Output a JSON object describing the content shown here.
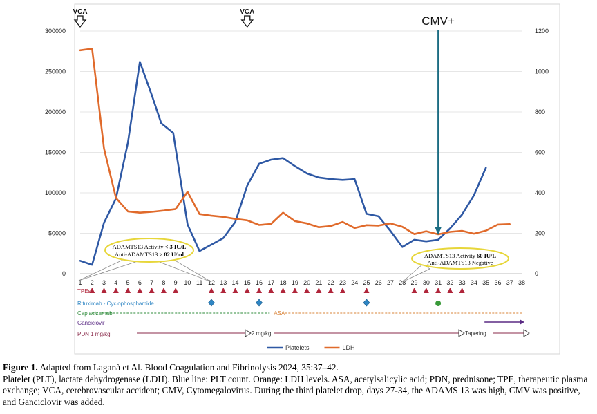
{
  "chart_data": {
    "type": "line",
    "days": [
      1,
      2,
      3,
      4,
      5,
      6,
      7,
      8,
      9,
      10,
      11,
      12,
      13,
      14,
      15,
      16,
      17,
      18,
      19,
      20,
      21,
      22,
      23,
      24,
      25,
      26,
      27,
      28,
      29,
      30,
      31,
      32,
      33,
      34,
      35,
      36,
      37,
      38
    ],
    "x_labels": [
      "1",
      "2",
      "3",
      "4",
      "5",
      "6",
      "7",
      "8",
      "9",
      "10",
      "11",
      "12",
      "13",
      "14",
      "15",
      "16",
      "17",
      "18",
      "19",
      "20",
      "21",
      "22",
      "23",
      "24",
      "25",
      "26",
      "27",
      "28",
      "29",
      "30",
      "31",
      "32",
      "33",
      "34",
      "35",
      "36",
      "37",
      "38"
    ],
    "series": [
      {
        "name": "Platelets",
        "axis": "left",
        "color": "#2e58a4",
        "points": [
          [
            1,
            16000
          ],
          [
            2,
            11000
          ],
          [
            3,
            63000
          ],
          [
            4,
            93000
          ],
          [
            5,
            162000
          ],
          [
            6,
            262000
          ],
          [
            7,
            221000
          ],
          [
            7.8,
            186000
          ],
          [
            8.8,
            174000
          ],
          [
            10,
            61000
          ],
          [
            11,
            28000
          ],
          [
            12,
            36000
          ],
          [
            13,
            44000
          ],
          [
            14,
            64000
          ],
          [
            15,
            109000
          ],
          [
            16,
            136000
          ],
          [
            17,
            141000
          ],
          [
            18,
            143000
          ],
          [
            19,
            133000
          ],
          [
            20,
            124000
          ],
          [
            21,
            119000
          ],
          [
            22,
            117000
          ],
          [
            23,
            116000
          ],
          [
            24,
            117000
          ],
          [
            25,
            74000
          ],
          [
            26,
            71000
          ],
          [
            27,
            53000
          ],
          [
            28,
            33000
          ],
          [
            29,
            42000
          ],
          [
            30,
            40000
          ],
          [
            31,
            42000
          ],
          [
            32,
            56000
          ],
          [
            33,
            73000
          ],
          [
            34,
            97000
          ],
          [
            35,
            131000
          ]
        ]
      },
      {
        "name": "LDH",
        "axis": "right",
        "color": "#e06a2b",
        "points": [
          [
            1,
            1105
          ],
          [
            2,
            1113
          ],
          [
            3,
            620
          ],
          [
            4,
            375
          ],
          [
            5,
            308
          ],
          [
            6,
            302
          ],
          [
            7,
            306
          ],
          [
            8,
            312
          ],
          [
            9,
            320
          ],
          [
            10,
            405
          ],
          [
            11,
            295
          ],
          [
            12,
            287
          ],
          [
            13,
            281
          ],
          [
            14,
            271
          ],
          [
            15,
            264
          ],
          [
            16,
            241
          ],
          [
            17,
            246
          ],
          [
            18,
            302
          ],
          [
            19,
            260
          ],
          [
            20,
            249
          ],
          [
            21,
            230
          ],
          [
            22,
            236
          ],
          [
            23,
            256
          ],
          [
            24,
            226
          ],
          [
            25,
            240
          ],
          [
            26,
            238
          ],
          [
            27,
            249
          ],
          [
            28,
            232
          ],
          [
            29,
            196
          ],
          [
            30,
            210
          ],
          [
            31,
            195
          ],
          [
            32,
            207
          ],
          [
            33,
            212
          ],
          [
            34,
            198
          ],
          [
            35,
            213
          ],
          [
            36,
            243
          ],
          [
            37,
            245
          ]
        ]
      }
    ],
    "y_left": {
      "min": 0,
      "max": 300000,
      "ticks": [
        0,
        50000,
        100000,
        150000,
        200000,
        250000,
        300000
      ],
      "tick_labels": [
        "0",
        "50000",
        "100000",
        "150000",
        "200000",
        "250000",
        "300000"
      ]
    },
    "y_right": {
      "min": 0,
      "max": 1200,
      "ticks": [
        0,
        200,
        400,
        600,
        800,
        1000,
        1200
      ],
      "tick_labels": [
        "0",
        "200",
        "400",
        "600",
        "800",
        "1000",
        "1200"
      ]
    },
    "legend": [
      {
        "name": "Platelets",
        "color": "#2e58a4"
      },
      {
        "name": "LDH",
        "color": "#e06a2b"
      }
    ],
    "legend_position": "bottom-center",
    "annotations": {
      "vca_label": "VCA",
      "vca_days": [
        1,
        15
      ],
      "cmv_label": "CMV+",
      "cmv_day": 31,
      "callout_1": {
        "line1_prefix": "ADAMTS13 Activity ",
        "line1_value": "< 3 IU/L",
        "line2_prefix": "Anti-ADAMTS13 ",
        "line2_value": "> 82 U/ml",
        "anchor_day": 12
      },
      "callout_2": {
        "line1_prefix": "ADAMTS13 Activity ",
        "line1_value": "60 IU/L",
        "line2": "Anti-ADAMTS13 Negative",
        "anchor_day": 28
      }
    },
    "treatments": {
      "tpe": {
        "label": "TPEs",
        "color": "#b0253a",
        "days": [
          2,
          3,
          4,
          5,
          6,
          7,
          8,
          9,
          12,
          13,
          14,
          15,
          16,
          17,
          18,
          19,
          20,
          21,
          22,
          23,
          25,
          29,
          30,
          31,
          32,
          33
        ]
      },
      "rituximab": {
        "label": "Rituximab - Cyclophosphamide",
        "color": "#2f86c4",
        "days": [
          12,
          16,
          25
        ]
      },
      "green_dot": {
        "color": "#3a9a3a",
        "day": 31
      },
      "caplacizumab": {
        "label": "Caplacizumab",
        "color": "#2e8b3a",
        "from_day": 2,
        "to_day": 17
      },
      "asa": {
        "label": "ASA",
        "color": "#d9843a",
        "from_day": 17,
        "to_day": 38
      },
      "ganciclovir": {
        "label": "Ganciclovir",
        "color": "#5a2a84",
        "from_day": 35,
        "to_day": 38
      },
      "pdn": {
        "label": "PDN 1 mg/kg",
        "color": "#8a2a4a",
        "segment2": "2 mg/kg",
        "segment3": "Tapering"
      }
    }
  },
  "caption": {
    "title_bold": "Figure 1.",
    "title_rest": " Adapted from Laganà et Al. Blood Coagulation and Fibrinolysis 2024, 35:37–42.",
    "body": "Platelet (PLT), lactate dehydrogenase (LDH). Blue line: PLT count. Orange: LDH levels. ASA, acetylsalicylic acid; PDN, prednisone; TPE, therapeutic plasma exchange; VCA, cerebrovascular accident; CMV, Cytomegalovirus. During the third platelet drop, days 27-34, the ADAMS 13 was high, CMV was positive, and Ganciclovir was added."
  }
}
